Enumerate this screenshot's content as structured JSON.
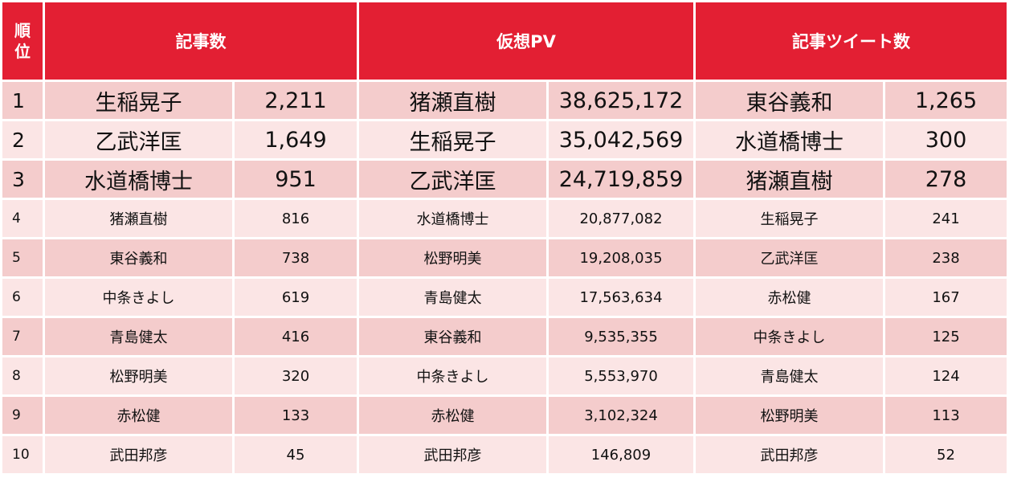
{
  "headers": {
    "rank": "順位",
    "articles": "記事数",
    "pv": "仮想PV",
    "tweets": "記事ツイート数"
  },
  "rows": [
    {
      "rank": "1",
      "a_name": "生稲晃子",
      "a_val": "2,211",
      "p_name": "猪瀬直樹",
      "p_val": "38,625,172",
      "t_name": "東谷義和",
      "t_val": "1,265"
    },
    {
      "rank": "2",
      "a_name": "乙武洋匡",
      "a_val": "1,649",
      "p_name": "生稲晃子",
      "p_val": "35,042,569",
      "t_name": "水道橋博士",
      "t_val": "300"
    },
    {
      "rank": "3",
      "a_name": "水道橋博士",
      "a_val": "951",
      "p_name": "乙武洋匡",
      "p_val": "24,719,859",
      "t_name": "猪瀬直樹",
      "t_val": "278"
    },
    {
      "rank": "4",
      "a_name": "猪瀬直樹",
      "a_val": "816",
      "p_name": "水道橋博士",
      "p_val": "20,877,082",
      "t_name": "生稲晃子",
      "t_val": "241"
    },
    {
      "rank": "5",
      "a_name": "東谷義和",
      "a_val": "738",
      "p_name": "松野明美",
      "p_val": "19,208,035",
      "t_name": "乙武洋匡",
      "t_val": "238"
    },
    {
      "rank": "6",
      "a_name": "中条きよし",
      "a_val": "619",
      "p_name": "青島健太",
      "p_val": "17,563,634",
      "t_name": "赤松健",
      "t_val": "167"
    },
    {
      "rank": "7",
      "a_name": "青島健太",
      "a_val": "416",
      "p_name": "東谷義和",
      "p_val": "9,535,355",
      "t_name": "中条きよし",
      "t_val": "125"
    },
    {
      "rank": "8",
      "a_name": "松野明美",
      "a_val": "320",
      "p_name": "中条きよし",
      "p_val": "5,553,970",
      "t_name": "青島健太",
      "t_val": "124"
    },
    {
      "rank": "9",
      "a_name": "赤松健",
      "a_val": "133",
      "p_name": "赤松健",
      "p_val": "3,102,324",
      "t_name": "松野明美",
      "t_val": "113"
    },
    {
      "rank": "10",
      "a_name": "武田邦彦",
      "a_val": "45",
      "p_name": "武田邦彦",
      "p_val": "146,809",
      "t_name": "武田邦彦",
      "t_val": "52"
    }
  ],
  "colors": {
    "header_bg": "#e31f33",
    "row_odd": "#f4cccc",
    "row_even": "#fbe5e5"
  }
}
